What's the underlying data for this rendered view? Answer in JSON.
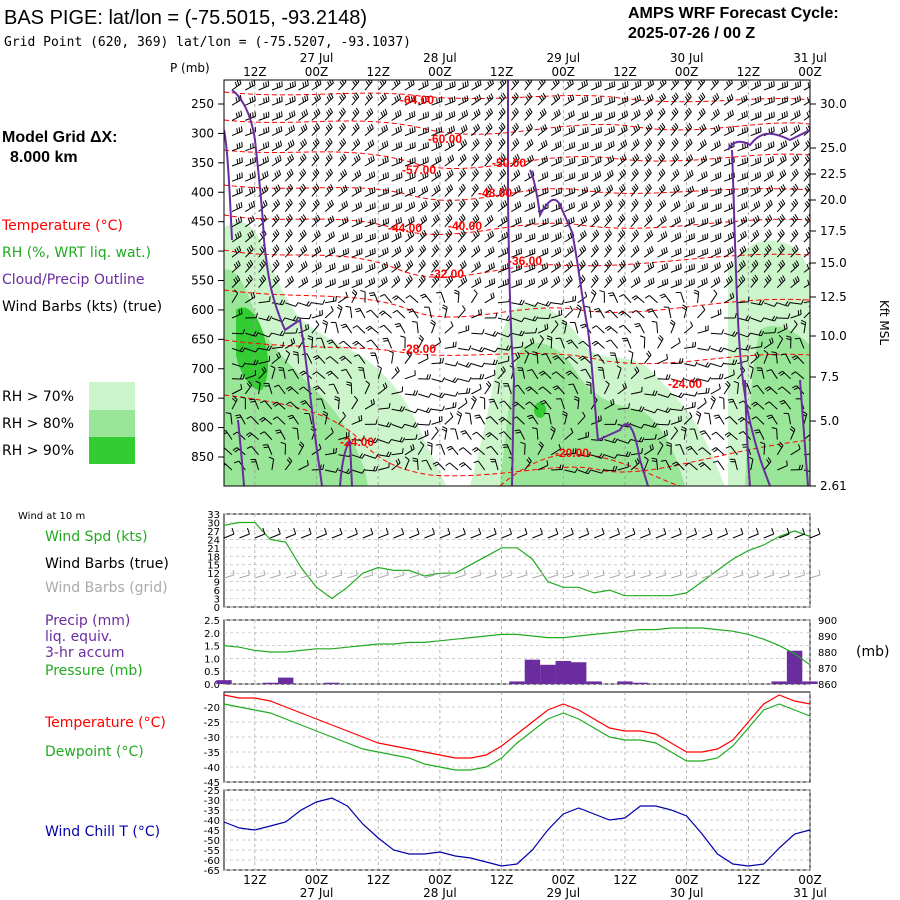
{
  "header": {
    "title": "BAS PIGE:  lat/lon = (-75.5015, -93.2148)",
    "gridpoint": "Grid Point (620, 369) lat/lon = (-75.5207, -93.1037)",
    "cycle_line1": "AMPS WRF Forecast Cycle:",
    "cycle_line2": "2025-07-26 / 00  Z"
  },
  "legend": {
    "model_grid": "Model Grid ΔX:",
    "model_grid_val": "8.000 km",
    "temperature": "Temperature (°C)",
    "rh": "RH (%, WRT liq. wat.)",
    "cloud": "Cloud/Precip Outline",
    "wind": "Wind Barbs (kts) (true)",
    "rh70": "RH > 70%",
    "rh80": "RH > 80%",
    "rh90": "RH > 90%",
    "wind10": "Wind at 10 m",
    "windspd": "Wind Spd (kts)",
    "windbarbs_true": "Wind Barbs (true)",
    "windbarbs_grid": "Wind Barbs (grid)",
    "precip1": "Precip (mm)",
    "precip2": "liq. equiv.",
    "precip3": "3-hr accum",
    "pressure": "Pressure (mb)",
    "pressure_unit": "(mb)",
    "temp2": "Temperature (°C)",
    "dewpoint": "Dewpoint (°C)",
    "windchill": "Wind Chill T (°C)"
  },
  "colors": {
    "temperature": "#ff0000",
    "rh": "#22aa22",
    "cloud": "#6a2c9e",
    "wind": "#000000",
    "grid_wind": "#aaaaaa",
    "rh70": "#ccf5cc",
    "rh80": "#99e699",
    "rh90": "#33cc33",
    "windchill": "#0000aa",
    "precip_bar": "#6a2c9e"
  },
  "axes": {
    "p_label": "P (mb)",
    "kft_label": "Kft MSL",
    "time_ticks": [
      "12Z",
      "00Z",
      "12Z",
      "00Z",
      "12Z",
      "00Z",
      "12Z",
      "00Z",
      "12Z",
      "00Z"
    ],
    "date_ticks": [
      "27 Jul",
      "28 Jul",
      "29 Jul",
      "30 Jul",
      "31 Jul"
    ],
    "pressure_levels": [
      250,
      300,
      350,
      400,
      450,
      500,
      550,
      600,
      650,
      700,
      750,
      800,
      850
    ],
    "height_levels": [
      "30.0",
      "25.0",
      "22.5",
      "20.0",
      "17.5",
      "15.0",
      "12.5",
      "10.0",
      "7.5",
      "5.0",
      "2.61"
    ]
  },
  "contour_labels": [
    "-64.00",
    "-60.00",
    "-57.00",
    "-50.00",
    "-48.00",
    "-44.00",
    "-40.00",
    "-36.00",
    "-32.00",
    "-28.00",
    "-24.00",
    "-24.00",
    "-20.00"
  ],
  "chart_data": [
    {
      "type": "line",
      "title": "Wind at 10 m",
      "ylabel": "Wind Spd (kts)",
      "ylim": [
        0,
        33
      ],
      "yticks": [
        0,
        3,
        6,
        9,
        12,
        15,
        18,
        21,
        24,
        27,
        30,
        33
      ],
      "x": [
        "26 Jul 06Z",
        "26 Jul 09Z",
        "26 Jul 12Z",
        "26 Jul 15Z",
        "26 Jul 18Z",
        "26 Jul 21Z",
        "27 Jul 00Z",
        "27 Jul 03Z",
        "27 Jul 06Z",
        "27 Jul 09Z",
        "27 Jul 12Z",
        "27 Jul 15Z",
        "27 Jul 18Z",
        "27 Jul 21Z",
        "28 Jul 00Z",
        "28 Jul 03Z",
        "28 Jul 06Z",
        "28 Jul 09Z",
        "28 Jul 12Z",
        "28 Jul 15Z",
        "28 Jul 18Z",
        "28 Jul 21Z",
        "29 Jul 00Z",
        "29 Jul 03Z",
        "29 Jul 06Z",
        "29 Jul 09Z",
        "29 Jul 12Z",
        "29 Jul 15Z",
        "29 Jul 18Z",
        "29 Jul 21Z",
        "30 Jul 00Z",
        "30 Jul 03Z",
        "30 Jul 06Z",
        "30 Jul 09Z",
        "30 Jul 12Z",
        "30 Jul 15Z",
        "30 Jul 18Z",
        "30 Jul 21Z",
        "31 Jul 00Z"
      ],
      "series": [
        {
          "name": "Wind Spd (kts)",
          "values": [
            29,
            30,
            30,
            24,
            23,
            14,
            7,
            3,
            7,
            12,
            14,
            13,
            13,
            11,
            12,
            12,
            15,
            18,
            21,
            21,
            17,
            9,
            7,
            7,
            5,
            6,
            4,
            4,
            4,
            4,
            5,
            9,
            13,
            17,
            20,
            22,
            25,
            27,
            25
          ]
        }
      ]
    },
    {
      "type": "bar",
      "ylabel": "Precip (mm)",
      "ylim": [
        0,
        2.5
      ],
      "yticks": [
        0,
        0.5,
        1.0,
        1.5,
        2.0,
        2.5
      ],
      "x": [
        "26 Jul 06Z",
        "26 Jul 09Z",
        "26 Jul 12Z",
        "26 Jul 15Z",
        "26 Jul 18Z",
        "26 Jul 21Z",
        "27 Jul 00Z",
        "27 Jul 03Z",
        "27 Jul 06Z",
        "27 Jul 09Z",
        "27 Jul 12Z",
        "27 Jul 15Z",
        "27 Jul 18Z",
        "27 Jul 21Z",
        "28 Jul 00Z",
        "28 Jul 03Z",
        "28 Jul 06Z",
        "28 Jul 09Z",
        "28 Jul 12Z",
        "28 Jul 15Z",
        "28 Jul 18Z",
        "28 Jul 21Z",
        "29 Jul 00Z",
        "29 Jul 03Z",
        "29 Jul 06Z",
        "29 Jul 09Z",
        "29 Jul 12Z",
        "29 Jul 15Z",
        "29 Jul 18Z",
        "29 Jul 21Z",
        "30 Jul 00Z",
        "30 Jul 03Z",
        "30 Jul 06Z",
        "30 Jul 09Z",
        "30 Jul 12Z",
        "30 Jul 15Z",
        "30 Jul 18Z",
        "30 Jul 21Z",
        "31 Jul 00Z"
      ],
      "series": [
        {
          "name": "Precip (mm)",
          "values": [
            0.15,
            0,
            0,
            0.05,
            0.25,
            0,
            0,
            0.05,
            0,
            0,
            0,
            0,
            0,
            0,
            0,
            0,
            0,
            0,
            0,
            0.1,
            0.95,
            0.75,
            0.9,
            0.85,
            0.1,
            0,
            0.1,
            0.05,
            0,
            0,
            0,
            0,
            0,
            0,
            0,
            0,
            0.1,
            1.3,
            0.1
          ]
        },
        {
          "name": "Pressure (mb)",
          "axis": "right",
          "ylim": [
            860,
            900
          ],
          "yticks": [
            860,
            870,
            880,
            890,
            900
          ],
          "values": [
            884,
            883,
            881,
            880,
            880,
            881,
            882,
            882,
            883,
            884,
            885,
            885,
            886,
            886,
            887,
            888,
            889,
            890,
            891,
            891,
            890,
            889,
            889,
            890,
            891,
            892,
            893,
            894,
            894,
            895,
            895,
            895,
            894,
            893,
            891,
            888,
            884,
            879,
            872
          ]
        }
      ]
    },
    {
      "type": "line",
      "ylim": [
        -45,
        -15
      ],
      "yticks": [
        -45,
        -40,
        -35,
        -30,
        -25,
        -20
      ],
      "x": [
        "26 Jul 06Z",
        "26 Jul 09Z",
        "26 Jul 12Z",
        "26 Jul 15Z",
        "26 Jul 18Z",
        "26 Jul 21Z",
        "27 Jul 00Z",
        "27 Jul 03Z",
        "27 Jul 06Z",
        "27 Jul 09Z",
        "27 Jul 12Z",
        "27 Jul 15Z",
        "27 Jul 18Z",
        "27 Jul 21Z",
        "28 Jul 00Z",
        "28 Jul 03Z",
        "28 Jul 06Z",
        "28 Jul 09Z",
        "28 Jul 12Z",
        "28 Jul 15Z",
        "28 Jul 18Z",
        "28 Jul 21Z",
        "29 Jul 00Z",
        "29 Jul 03Z",
        "29 Jul 06Z",
        "29 Jul 09Z",
        "29 Jul 12Z",
        "29 Jul 15Z",
        "29 Jul 18Z",
        "29 Jul 21Z",
        "30 Jul 00Z",
        "30 Jul 03Z",
        "30 Jul 06Z",
        "30 Jul 09Z",
        "30 Jul 12Z",
        "30 Jul 15Z",
        "30 Jul 18Z",
        "30 Jul 21Z",
        "31 Jul 00Z"
      ],
      "series": [
        {
          "name": "Temperature (°C)",
          "values": [
            -16,
            -17,
            -17,
            -18,
            -20,
            -22,
            -24,
            -26,
            -28,
            -30,
            -32,
            -33,
            -34,
            -35,
            -36,
            -37,
            -37,
            -36,
            -33,
            -29,
            -25,
            -21,
            -19,
            -21,
            -24,
            -27,
            -28,
            -28,
            -29,
            -32,
            -35,
            -35,
            -34,
            -31,
            -25,
            -19,
            -16,
            -18,
            -19
          ]
        },
        {
          "name": "Dewpoint (°C)",
          "values": [
            -19,
            -20,
            -21,
            -22,
            -24,
            -26,
            -28,
            -30,
            -32,
            -34,
            -35,
            -36,
            -37,
            -39,
            -40,
            -41,
            -41,
            -40,
            -37,
            -32,
            -28,
            -24,
            -22,
            -24,
            -27,
            -30,
            -31,
            -31,
            -32,
            -35,
            -38,
            -38,
            -37,
            -33,
            -27,
            -21,
            -19,
            -21,
            -23
          ]
        }
      ]
    },
    {
      "type": "line",
      "ylabel": "Wind Chill T (°C)",
      "ylim": [
        -65,
        -25
      ],
      "yticks": [
        -65,
        -60,
        -55,
        -50,
        -45,
        -40,
        -35,
        -30,
        -25
      ],
      "x": [
        "26 Jul 06Z",
        "26 Jul 09Z",
        "26 Jul 12Z",
        "26 Jul 15Z",
        "26 Jul 18Z",
        "26 Jul 21Z",
        "27 Jul 00Z",
        "27 Jul 03Z",
        "27 Jul 06Z",
        "27 Jul 09Z",
        "27 Jul 12Z",
        "27 Jul 15Z",
        "27 Jul 18Z",
        "27 Jul 21Z",
        "28 Jul 00Z",
        "28 Jul 03Z",
        "28 Jul 06Z",
        "28 Jul 09Z",
        "28 Jul 12Z",
        "28 Jul 15Z",
        "28 Jul 18Z",
        "28 Jul 21Z",
        "29 Jul 00Z",
        "29 Jul 03Z",
        "29 Jul 06Z",
        "29 Jul 09Z",
        "29 Jul 12Z",
        "29 Jul 15Z",
        "29 Jul 18Z",
        "29 Jul 21Z",
        "30 Jul 00Z",
        "30 Jul 03Z",
        "30 Jul 06Z",
        "30 Jul 09Z",
        "30 Jul 12Z",
        "30 Jul 15Z",
        "30 Jul 18Z",
        "30 Jul 21Z",
        "31 Jul 00Z"
      ],
      "series": [
        {
          "name": "Wind Chill T (°C)",
          "values": [
            -41,
            -44,
            -45,
            -43,
            -41,
            -35,
            -31,
            -29,
            -33,
            -42,
            -49,
            -55,
            -57,
            -57,
            -56,
            -58,
            -59,
            -61,
            -63,
            -62,
            -55,
            -45,
            -37,
            -34,
            -37,
            -40,
            -39,
            -33,
            -33,
            -35,
            -38,
            -47,
            -57,
            -62,
            -63,
            -62,
            -54,
            -47,
            -45
          ]
        }
      ]
    }
  ]
}
